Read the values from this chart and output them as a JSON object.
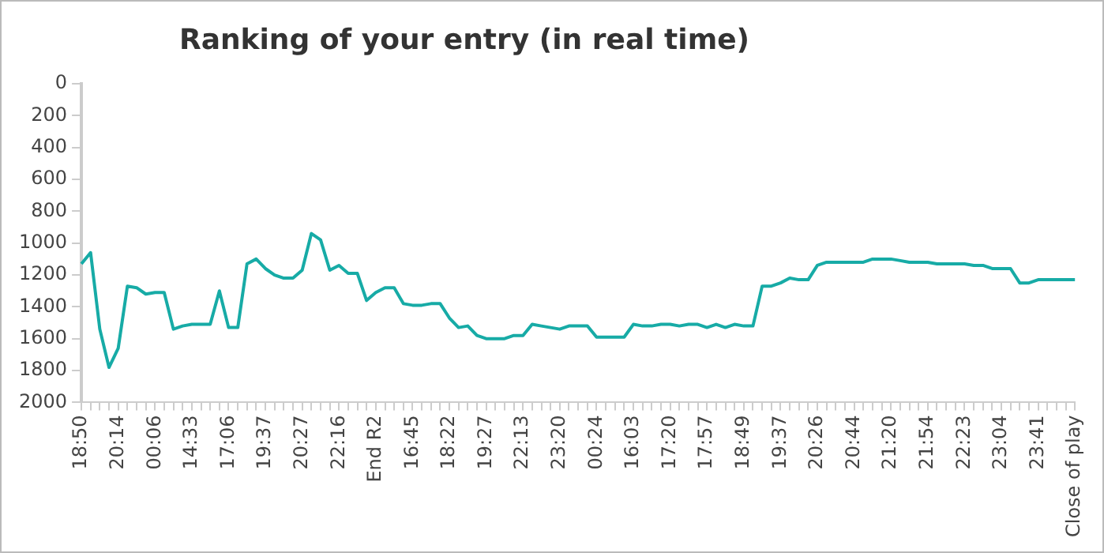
{
  "chart_data": {
    "type": "line",
    "title": "Ranking of your entry (in real time)",
    "categories": [
      "18:50",
      null,
      null,
      null,
      "20:14",
      null,
      null,
      null,
      "00:06",
      null,
      null,
      null,
      "14:33",
      null,
      null,
      null,
      "17:06",
      null,
      null,
      null,
      "19:37",
      null,
      null,
      null,
      "20:27",
      null,
      null,
      null,
      "22:16",
      null,
      null,
      null,
      "End R2",
      null,
      null,
      null,
      "16:45",
      null,
      null,
      null,
      "18:22",
      null,
      null,
      null,
      "19:27",
      null,
      null,
      null,
      "22:13",
      null,
      null,
      null,
      "23:20",
      null,
      null,
      null,
      "00:24",
      null,
      null,
      null,
      "16:03",
      null,
      null,
      null,
      "17:20",
      null,
      null,
      null,
      "17:57",
      null,
      null,
      null,
      "18:49",
      null,
      null,
      null,
      "19:37",
      null,
      null,
      null,
      "20:26",
      null,
      null,
      null,
      "20:44",
      null,
      null,
      null,
      "21:20",
      null,
      null,
      null,
      "21:54",
      null,
      null,
      null,
      "22:23",
      null,
      null,
      null,
      "23:04",
      null,
      null,
      null,
      "23:41",
      null,
      null,
      null,
      "Close of play"
    ],
    "series": [
      {
        "color": "#17aba6",
        "values": [
          1130,
          1060,
          1540,
          1780,
          1660,
          1270,
          1280,
          1320,
          1310,
          1310,
          1540,
          1520,
          1510,
          1510,
          1510,
          1300,
          1530,
          1530,
          1130,
          1100,
          1160,
          1200,
          1220,
          1220,
          1170,
          940,
          980,
          1170,
          1140,
          1190,
          1190,
          1360,
          1310,
          1280,
          1280,
          1380,
          1390,
          1390,
          1380,
          1380,
          1470,
          1530,
          1520,
          1580,
          1600,
          1600,
          1600,
          1580,
          1580,
          1510,
          1520,
          1530,
          1540,
          1520,
          1520,
          1520,
          1590,
          1590,
          1590,
          1590,
          1510,
          1520,
          1520,
          1510,
          1510,
          1520,
          1510,
          1510,
          1530,
          1510,
          1530,
          1510,
          1520,
          1520,
          1270,
          1270,
          1250,
          1220,
          1230,
          1230,
          1140,
          1120,
          1120,
          1120,
          1120,
          1120,
          1100,
          1100,
          1100,
          1110,
          1120,
          1120,
          1120,
          1130,
          1130,
          1130,
          1130,
          1140,
          1140,
          1160,
          1160,
          1160,
          1250,
          1250,
          1230,
          1230,
          1230,
          1230,
          1230
        ]
      }
    ],
    "ylim": [
      2000,
      0
    ],
    "yticks": [
      0,
      200,
      400,
      600,
      800,
      1000,
      1200,
      1400,
      1600,
      1800,
      2000
    ],
    "grid": false,
    "legend": false,
    "marker": "none",
    "line_style": "solid"
  }
}
